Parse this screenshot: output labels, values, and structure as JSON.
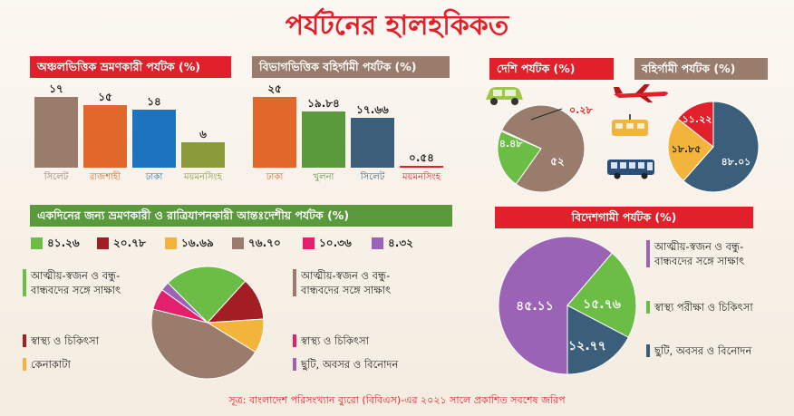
{
  "title": "পর্যটনের হালহকিকত",
  "source": "সূত্র: বাংলাদেশ পরিসংখ্যান ব্যুরো (বিবিএস)-এর ২০২১ সালে প্রকাশিত সবশেষ জরিপ",
  "colors": {
    "red": "#e1202b",
    "brown": "#9a7c6c",
    "green": "#5a9a3c",
    "orange": "#e2672a",
    "blue": "#1e73be",
    "olive": "#8a9a3a",
    "teal": "#3b5f7a",
    "yellow": "#f3b43c",
    "darkred": "#a31e22",
    "pink": "#e2206e",
    "purple": "#9b63b5",
    "lightgreen": "#6cbd45"
  },
  "chart_data": [
    {
      "type": "bar",
      "title": "অঞ্চলভিত্তিক ভ্রমণকারী পর্যটক (%)",
      "categories": [
        "সিলেট",
        "রাজশাহী",
        "ঢাকা",
        "ময়মনসিংহ"
      ],
      "values": [
        17,
        15,
        14,
        6
      ],
      "value_labels": [
        "১৭",
        "১৫",
        "১৪",
        "৬"
      ],
      "bar_colors": [
        "#9a7c6c",
        "#e2672a",
        "#1e73be",
        "#8a9a3a"
      ],
      "label_colors": [
        "#9a7c6c",
        "#e2672a",
        "#1e73be",
        "#8a9a3a"
      ]
    },
    {
      "type": "bar",
      "title": "বিভাগভিত্তিক বহির্গামী পর্যটক (%)",
      "categories": [
        "ঢাকা",
        "খুলনা",
        "সিলেট",
        "ময়মনসিংহ"
      ],
      "values": [
        25,
        19.84,
        17.66,
        0.54
      ],
      "value_labels": [
        "২৫",
        "১৯.৮৪",
        "১৭.৬৬",
        "০.৫৪"
      ],
      "bar_colors": [
        "#e2672a",
        "#5a9a3c",
        "#3b5f7a",
        "#e1202b"
      ],
      "label_colors": [
        "#e2672a",
        "#5a9a3c",
        "#3b5f7a",
        "#e1202b"
      ]
    },
    {
      "type": "pie",
      "title": "দেশি পর্যটক (%)",
      "values": [
        52,
        14.48,
        0.28
      ],
      "value_labels": [
        "৫২",
        "১৪.৪৮",
        "০.২৮"
      ],
      "colors": [
        "#9a7c6c",
        "#6cbd45",
        "#e1202b"
      ]
    },
    {
      "type": "pie",
      "title": "বহির্গামী পর্যটক (%)",
      "values": [
        48.01,
        18.85,
        11.22
      ],
      "value_labels": [
        "৪৮.০১",
        "১৮.৮৫",
        "১১.২২"
      ],
      "colors": [
        "#3b5f7a",
        "#f3b43c",
        "#e1202b"
      ]
    },
    {
      "type": "pie",
      "title": "একদিনের জন্য ভ্রমণকারী ও রাত্রিযাপনকারী আন্তঃদেশীয় পর্যটক (%)",
      "legend": [
        "৪১.২৬",
        "২০.৭৮",
        "১৬.৬৯",
        "৭৬.৭০",
        "১০.৩৬",
        "৪.৩২"
      ],
      "values": [
        41.26,
        20.78,
        16.69,
        76.7,
        10.36,
        4.32
      ],
      "colors": [
        "#6cbd45",
        "#a31e22",
        "#f3b43c",
        "#9a7c6c",
        "#e2206e",
        "#9b63b5"
      ],
      "categories_left": [
        "আত্মীয়-স্বজন ও বন্ধু-বান্ধবদের সঙ্গে সাক্ষাৎ",
        "স্বাস্থ্য ও চিকিৎসা",
        "কেনাকাটা"
      ],
      "categories_right": [
        "আত্মীয়-স্বজন ও বন্ধু-বান্ধবদের সঙ্গে সাক্ষাৎ",
        "স্বাস্থ্য ও চিকিৎসা",
        "ছুটি, অবসর ও বিনোদন"
      ]
    },
    {
      "type": "pie",
      "title": "বিদেশগামী পর্যটক (%)",
      "values": [
        45.11,
        15.76,
        12.77
      ],
      "value_labels": [
        "৪৫.১১",
        "১৫.৭৬",
        "১২.৭৭"
      ],
      "colors": [
        "#9b63b5",
        "#6cbd45",
        "#3b5f7a"
      ],
      "categories": [
        "আত্মীয়-স্বজন ও বন্ধু-বান্ধবদের সঙ্গে সাক্ষাৎ",
        "স্বাস্থ্য পরীক্ষা ও চিকিৎসা",
        "ছুটি, অবসর ও বিনোদন"
      ]
    }
  ]
}
